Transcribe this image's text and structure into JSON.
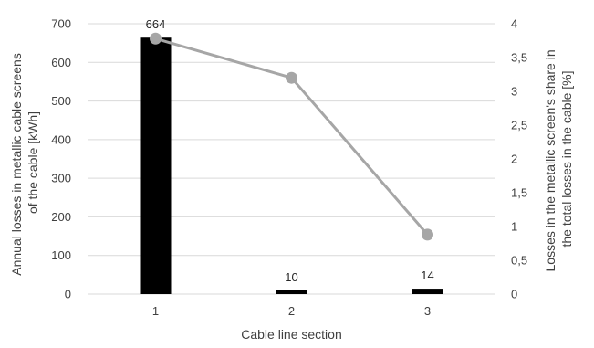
{
  "chart_data": {
    "type": "bar",
    "categories": [
      "1",
      "2",
      "3"
    ],
    "series": [
      {
        "type": "bar",
        "axis": "left",
        "values": [
          664,
          10,
          14
        ],
        "data_labels": [
          "664",
          "10",
          "14"
        ],
        "color": "#000000"
      },
      {
        "type": "line",
        "axis": "right",
        "values": [
          3.78,
          3.2,
          0.88
        ],
        "color": "#a6a6a6"
      }
    ],
    "title": "",
    "xlabel": "Cable line section",
    "ylabel": "Annual losses in metallic cable screens of the cable [kWh]",
    "ylabel_lines": [
      "Annual losses in metallic cable screens",
      "of the cable [kWh]"
    ],
    "ylabel_right": "Losses in the metallic screen's share in the total losses in the cable [%]",
    "ylabel_right_lines": [
      "Losses in the metallic screen's share in",
      "the total losses in the cable [%]"
    ],
    "ylim": [
      0,
      700
    ],
    "ylim_right": [
      0,
      4
    ],
    "yticks": [
      "0",
      "100",
      "200",
      "300",
      "400",
      "500",
      "600",
      "700"
    ],
    "yticks_right": [
      "0",
      "0,5",
      "1",
      "1,5",
      "2",
      "2,5",
      "3",
      "3,5",
      "4"
    ],
    "grid": true,
    "legend": "none",
    "gridline_color": "#d9d9d9"
  }
}
